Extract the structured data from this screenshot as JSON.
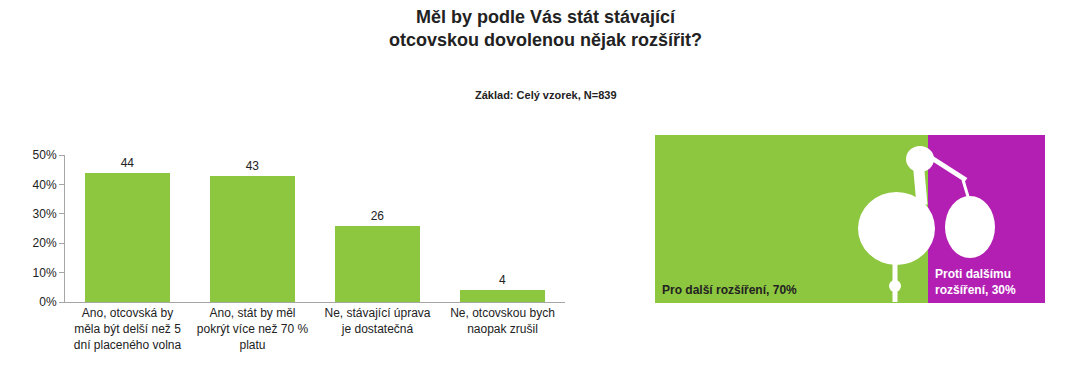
{
  "chart_data": [
    {
      "type": "bar",
      "title": "Měl by podle Vás stát stávající\notcovskou dovolenou nějak rozšířit?",
      "subtitle": "Základ: Celý vzorek, N=839",
      "categories": [
        "Ano, otcovská by\nměla být delší než 5\ndní placeného volna",
        "Ano, stát by měl\npokrýt více než 70 %\nplatu",
        "Ne, stávající úprava\nje dostatečná",
        "Ne, otcovskou bych\nnaopak zrušil"
      ],
      "values": [
        44,
        43,
        26,
        4
      ],
      "color": "#8dc63f",
      "ylim": [
        0,
        50
      ],
      "yticks": [
        {
          "value": 0,
          "label": "0%"
        },
        {
          "value": 10,
          "label": "10%"
        },
        {
          "value": 20,
          "label": "20%"
        },
        {
          "value": 30,
          "label": "30%"
        },
        {
          "value": 40,
          "label": "40%"
        },
        {
          "value": 50,
          "label": "50%"
        }
      ],
      "grid": false,
      "data_labels": true
    },
    {
      "type": "bar",
      "orientation": "horizontal",
      "stacked": true,
      "xlim": [
        0,
        100
      ],
      "tick_labels": false,
      "data_labels": true,
      "series": [
        {
          "name": "Pro další rozšíření",
          "color": "#8dc63f",
          "values": [
            70
          ],
          "value_labels": [
            "Pro další rozšíření, 70%"
          ]
        },
        {
          "name": "Proti dalšímu rozšíření",
          "color": "#b31eb3",
          "values": [
            30
          ],
          "value_labels": [
            "Proti dalšímu\nrozšíření, 30%"
          ]
        }
      ]
    }
  ]
}
